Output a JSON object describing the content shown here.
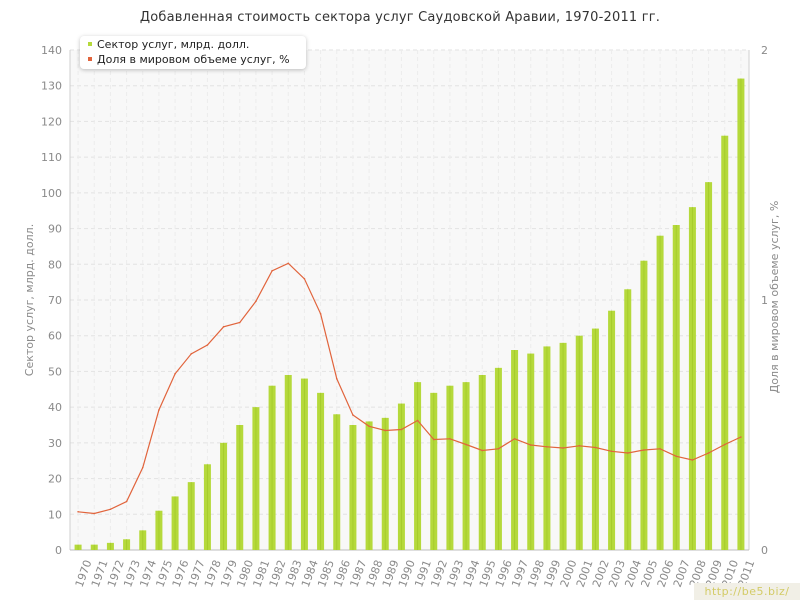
{
  "chart_data": {
    "type": "bar+line",
    "title": "Добавленная стоимость сектора услуг Саудовской Аравии, 1970-2011 гг.",
    "categories": [
      "1970",
      "1971",
      "1972",
      "1973",
      "1974",
      "1975",
      "1976",
      "1977",
      "1978",
      "1979",
      "1980",
      "1981",
      "1982",
      "1983",
      "1984",
      "1985",
      "1986",
      "1987",
      "1988",
      "1989",
      "1990",
      "1991",
      "1992",
      "1993",
      "1994",
      "1995",
      "1996",
      "1997",
      "1998",
      "1999",
      "2000",
      "2001",
      "2002",
      "2003",
      "2004",
      "2005",
      "2006",
      "2007",
      "2008",
      "2009",
      "2010",
      "2011"
    ],
    "series": [
      {
        "name": "Сектор услуг, млрд. долл.",
        "type": "bar",
        "axis": "left",
        "color": "#b5d93b",
        "values": [
          1.5,
          1.5,
          2,
          3,
          5.5,
          11,
          15,
          19,
          24,
          30,
          35,
          40,
          46,
          49,
          48,
          44,
          38,
          35,
          36,
          37,
          41,
          47,
          44,
          46,
          47,
          49,
          51,
          56,
          55,
          57,
          58,
          60,
          62,
          67,
          73,
          81,
          88,
          91,
          96,
          103,
          116,
          132
        ]
      },
      {
        "name": "Доля в мировом объеме услуг, %",
        "type": "line",
        "axis": "right",
        "color": "#e1643c",
        "values": [
          0.153,
          0.146,
          0.163,
          0.194,
          0.33,
          0.56,
          0.705,
          0.785,
          0.82,
          0.893,
          0.91,
          0.995,
          1.117,
          1.147,
          1.085,
          0.945,
          0.685,
          0.54,
          0.495,
          0.478,
          0.482,
          0.518,
          0.442,
          0.445,
          0.422,
          0.398,
          0.405,
          0.445,
          0.42,
          0.413,
          0.408,
          0.417,
          0.41,
          0.395,
          0.388,
          0.4,
          0.405,
          0.375,
          0.36,
          0.388,
          0.422,
          0.452
        ]
      }
    ],
    "y_left": {
      "label": "Сектор услуг, млрд. долл.",
      "range": [
        0,
        140
      ],
      "ticks": [
        0,
        10,
        20,
        30,
        40,
        50,
        60,
        70,
        80,
        90,
        100,
        110,
        120,
        130,
        140
      ]
    },
    "y_right": {
      "label": "Доля в мировом объеме услуг, %",
      "range": [
        0,
        2
      ],
      "ticks": [
        0,
        1,
        2
      ]
    },
    "grid": true,
    "legend": "top-left"
  },
  "watermark": "http://be5.biz/"
}
